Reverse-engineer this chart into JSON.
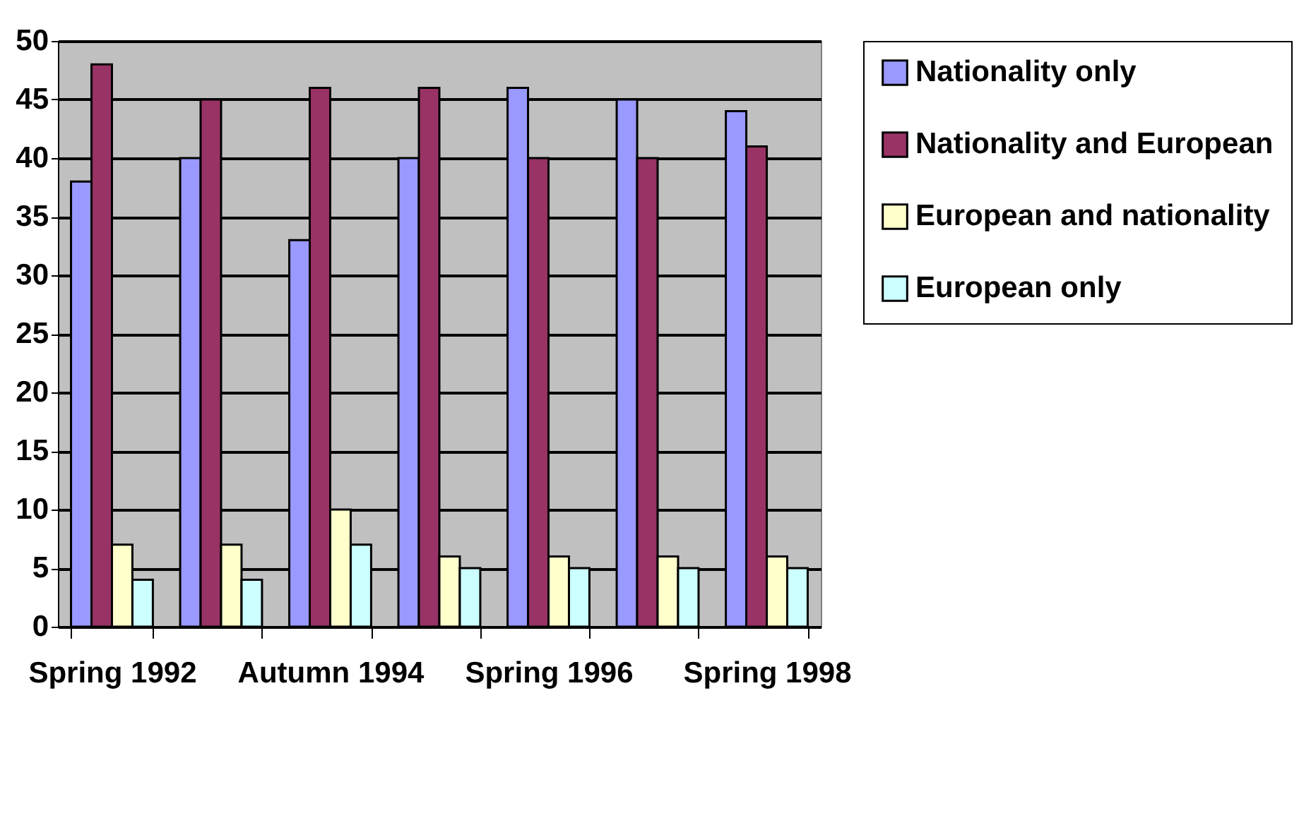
{
  "chart_data": {
    "type": "bar",
    "categories": [
      "Spring 1992",
      null,
      "Autumn 1994",
      null,
      "Spring 1996",
      null,
      "Spring 1998"
    ],
    "series": [
      {
        "name": "Nationality only",
        "color": "#9999ff",
        "values": [
          38,
          40,
          33,
          40,
          46,
          45,
          44
        ]
      },
      {
        "name": "Nationality and European",
        "color": "#993366",
        "values": [
          48,
          45,
          46,
          46,
          40,
          40,
          41
        ]
      },
      {
        "name": "European and nationality",
        "color": "#ffffcc",
        "values": [
          7,
          7,
          10,
          6,
          6,
          6,
          6
        ]
      },
      {
        "name": "European only",
        "color": "#ccffff",
        "values": [
          4,
          4,
          7,
          5,
          5,
          5,
          5
        ]
      }
    ],
    "ylim": [
      0,
      50
    ],
    "yticks": [
      0,
      5,
      10,
      15,
      20,
      25,
      30,
      35,
      40,
      45,
      50
    ],
    "grid": "y",
    "legend": "right"
  }
}
